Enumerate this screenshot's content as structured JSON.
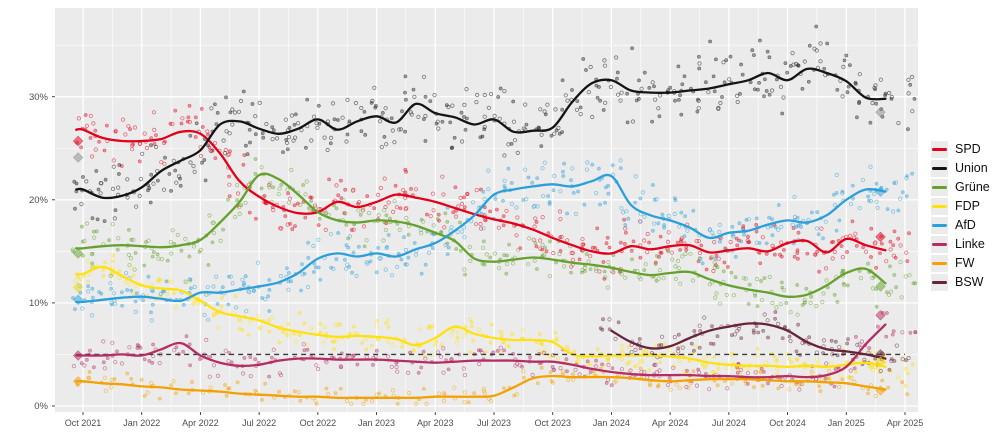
{
  "figure": {
    "background": "#ffffff",
    "panel_background": "#ebebeb",
    "grid_color": "#ffffff",
    "axis_text_color": "#4d4d4d",
    "tick_color": "#333333",
    "threshold_color": "#3a3a3a"
  },
  "chart_data": {
    "type": "scatter",
    "title": "",
    "xlabel": "",
    "ylabel": "",
    "ylim": [
      0,
      38.6
    ],
    "y_tick_values": [
      0,
      10,
      20,
      30
    ],
    "y_tick_labels": [
      "0%",
      "10%",
      "20%",
      "30%"
    ],
    "y_minor_values": [
      5,
      15,
      25,
      35
    ],
    "x_tick_labels": [
      "Oct 2021",
      "Jan 2022",
      "Apr 2022",
      "Jul 2022",
      "Oct 2022",
      "Jan 2023",
      "Apr 2023",
      "Jul 2023",
      "Oct 2023",
      "Jan 2024",
      "Apr 2024",
      "Jul 2024",
      "Oct 2024",
      "Jan 2025",
      "Apr 2025"
    ],
    "x_tick_month_step": 3,
    "months_span": 42,
    "threshold_pct": 5,
    "legend_position": "right",
    "series": [
      {
        "name": "SPD",
        "color": "#e2001a",
        "marker_color": "#e2001a",
        "dots_per_month": 9,
        "dot_spread": 1.4,
        "values": [
          26.8,
          26.0,
          25.7,
          25.7,
          25.9,
          26.6,
          26.4,
          24.5,
          21.8,
          20.3,
          19.3,
          18.7,
          18.8,
          19.8,
          19.3,
          19.8,
          20.5,
          20.2,
          19.8,
          19.2,
          18.6,
          18.1,
          17.7,
          17.1,
          16.3,
          15.6,
          15.0,
          14.8,
          15.5,
          15.2,
          15.5,
          15.6,
          14.9,
          15.1,
          15.3,
          15.0,
          15.8,
          16.0,
          14.9,
          16.2,
          15.6,
          15.1
        ]
      },
      {
        "name": "Union",
        "color": "#141414",
        "marker_color": "#8a8a8a",
        "dots_per_month": 10,
        "dot_spread": 1.8,
        "values": [
          21.0,
          20.2,
          20.4,
          21.2,
          22.8,
          23.8,
          24.8,
          27.3,
          27.6,
          26.9,
          26.4,
          26.9,
          27.8,
          26.8,
          27.6,
          28.1,
          27.5,
          29.3,
          28.4,
          28.0,
          27.3,
          27.8,
          26.6,
          26.7,
          27.0,
          29.5,
          31.3,
          31.6,
          30.6,
          30.4,
          30.4,
          30.6,
          30.8,
          31.2,
          31.6,
          32.3,
          31.6,
          32.7,
          32.3,
          31.5,
          29.9,
          29.8
        ]
      },
      {
        "name": "Grüne",
        "color": "#64a12d",
        "marker_color": "#64a12d",
        "dots_per_month": 8,
        "dot_spread": 1.3,
        "values": [
          15.3,
          15.5,
          15.6,
          15.5,
          15.4,
          15.6,
          16.1,
          17.8,
          19.8,
          22.4,
          22.0,
          20.5,
          18.8,
          18.0,
          17.8,
          18.0,
          17.9,
          17.5,
          16.8,
          16.0,
          14.3,
          14.0,
          14.2,
          14.4,
          14.2,
          13.9,
          13.7,
          13.4,
          13.0,
          12.7,
          12.9,
          13.0,
          12.3,
          11.7,
          11.3,
          11.0,
          10.6,
          10.8,
          11.7,
          12.9,
          13.3,
          11.9
        ]
      },
      {
        "name": "FDP",
        "color": "#ffe10c",
        "marker_color": "#f0d800",
        "dots_per_month": 8,
        "dot_spread": 1.0,
        "values": [
          12.8,
          13.5,
          12.6,
          11.7,
          11.4,
          11.2,
          10.2,
          9.1,
          8.7,
          8.3,
          7.6,
          7.2,
          6.9,
          6.7,
          6.8,
          6.7,
          6.5,
          5.9,
          6.6,
          7.7,
          7.0,
          6.6,
          6.4,
          6.4,
          6.2,
          5.0,
          4.8,
          4.9,
          4.9,
          4.9,
          4.8,
          4.6,
          4.2,
          4.0,
          3.9,
          3.9,
          3.8,
          3.9,
          3.8,
          4.0,
          4.2,
          3.8
        ]
      },
      {
        "name": "AfD",
        "color": "#2b9fd9",
        "marker_color": "#2b9fd9",
        "dots_per_month": 9,
        "dot_spread": 1.5,
        "values": [
          10.1,
          10.3,
          10.5,
          10.6,
          10.4,
          10.2,
          11.0,
          11.0,
          11.3,
          11.6,
          12.0,
          12.9,
          14.3,
          14.8,
          14.5,
          14.8,
          14.5,
          15.2,
          15.8,
          17.0,
          18.5,
          20.5,
          21.0,
          21.3,
          21.5,
          21.3,
          21.8,
          22.3,
          19.5,
          18.5,
          18.0,
          17.3,
          16.3,
          16.8,
          17.0,
          17.6,
          18.0,
          17.8,
          18.5,
          20.0,
          21.0,
          20.8
        ]
      },
      {
        "name": "Linke",
        "color": "#b52e63",
        "marker_color": "#b52e63",
        "dots_per_month": 6,
        "dot_spread": 0.8,
        "values": [
          4.9,
          4.9,
          5.0,
          4.9,
          5.5,
          6.1,
          4.9,
          4.2,
          3.9,
          4.0,
          4.4,
          4.6,
          4.6,
          4.5,
          4.5,
          4.5,
          4.4,
          4.3,
          4.2,
          4.3,
          4.4,
          4.4,
          4.4,
          4.3,
          4.3,
          4.0,
          3.6,
          3.3,
          3.1,
          3.0,
          3.0,
          3.0,
          2.9,
          2.9,
          2.8,
          2.8,
          2.9,
          2.8,
          3.0,
          3.8,
          6.0,
          7.9
        ]
      },
      {
        "name": "FW",
        "color": "#f3a000",
        "marker_color": "#f3a000",
        "dots_per_month": 4,
        "dot_spread": 0.6,
        "values": [
          2.4,
          2.2,
          2.1,
          1.9,
          1.8,
          1.6,
          1.5,
          1.4,
          1.2,
          1.1,
          1.0,
          0.9,
          0.9,
          0.8,
          0.8,
          0.8,
          0.8,
          0.8,
          0.9,
          0.9,
          0.9,
          1.0,
          1.8,
          2.7,
          2.9,
          2.8,
          2.8,
          2.8,
          2.7,
          2.5,
          2.4,
          2.5,
          2.6,
          2.6,
          2.6,
          2.5,
          2.4,
          2.4,
          2.3,
          2.2,
          1.9,
          1.6
        ]
      },
      {
        "name": "BSW",
        "color": "#662339",
        "marker_color": "#662339",
        "dots_per_month": 7,
        "dot_spread": 0.9,
        "values": [
          null,
          null,
          null,
          null,
          null,
          null,
          null,
          null,
          null,
          null,
          null,
          null,
          null,
          null,
          null,
          null,
          null,
          null,
          null,
          null,
          null,
          null,
          null,
          null,
          null,
          null,
          null,
          7.3,
          6.2,
          5.6,
          5.8,
          6.6,
          7.3,
          7.7,
          8.0,
          7.9,
          7.3,
          6.2,
          5.5,
          5.3,
          5.0,
          4.6
        ]
      }
    ],
    "election_markers": [
      {
        "x_index": -0.25,
        "results": [
          {
            "party": "SPD",
            "value": 25.7
          },
          {
            "party": "Union",
            "value": 24.1
          },
          {
            "party": "Grüne",
            "value": 14.8
          },
          {
            "party": "FDP",
            "value": 11.5
          },
          {
            "party": "AfD",
            "value": 10.3
          },
          {
            "party": "Linke",
            "value": 4.9
          },
          {
            "party": "FW",
            "value": 2.4
          }
        ]
      },
      {
        "x_index": 40.75,
        "results": [
          {
            "party": "Union",
            "value": 28.5
          },
          {
            "party": "AfD",
            "value": 20.8
          },
          {
            "party": "SPD",
            "value": 16.4
          },
          {
            "party": "Grüne",
            "value": 11.6
          },
          {
            "party": "Linke",
            "value": 8.8
          },
          {
            "party": "BSW",
            "value": 5.0
          },
          {
            "party": "FDP",
            "value": 4.3
          },
          {
            "party": "FW",
            "value": 1.5
          }
        ]
      }
    ],
    "legend": [
      "SPD",
      "Union",
      "Grüne",
      "FDP",
      "AfD",
      "Linke",
      "FW",
      "BSW"
    ]
  }
}
